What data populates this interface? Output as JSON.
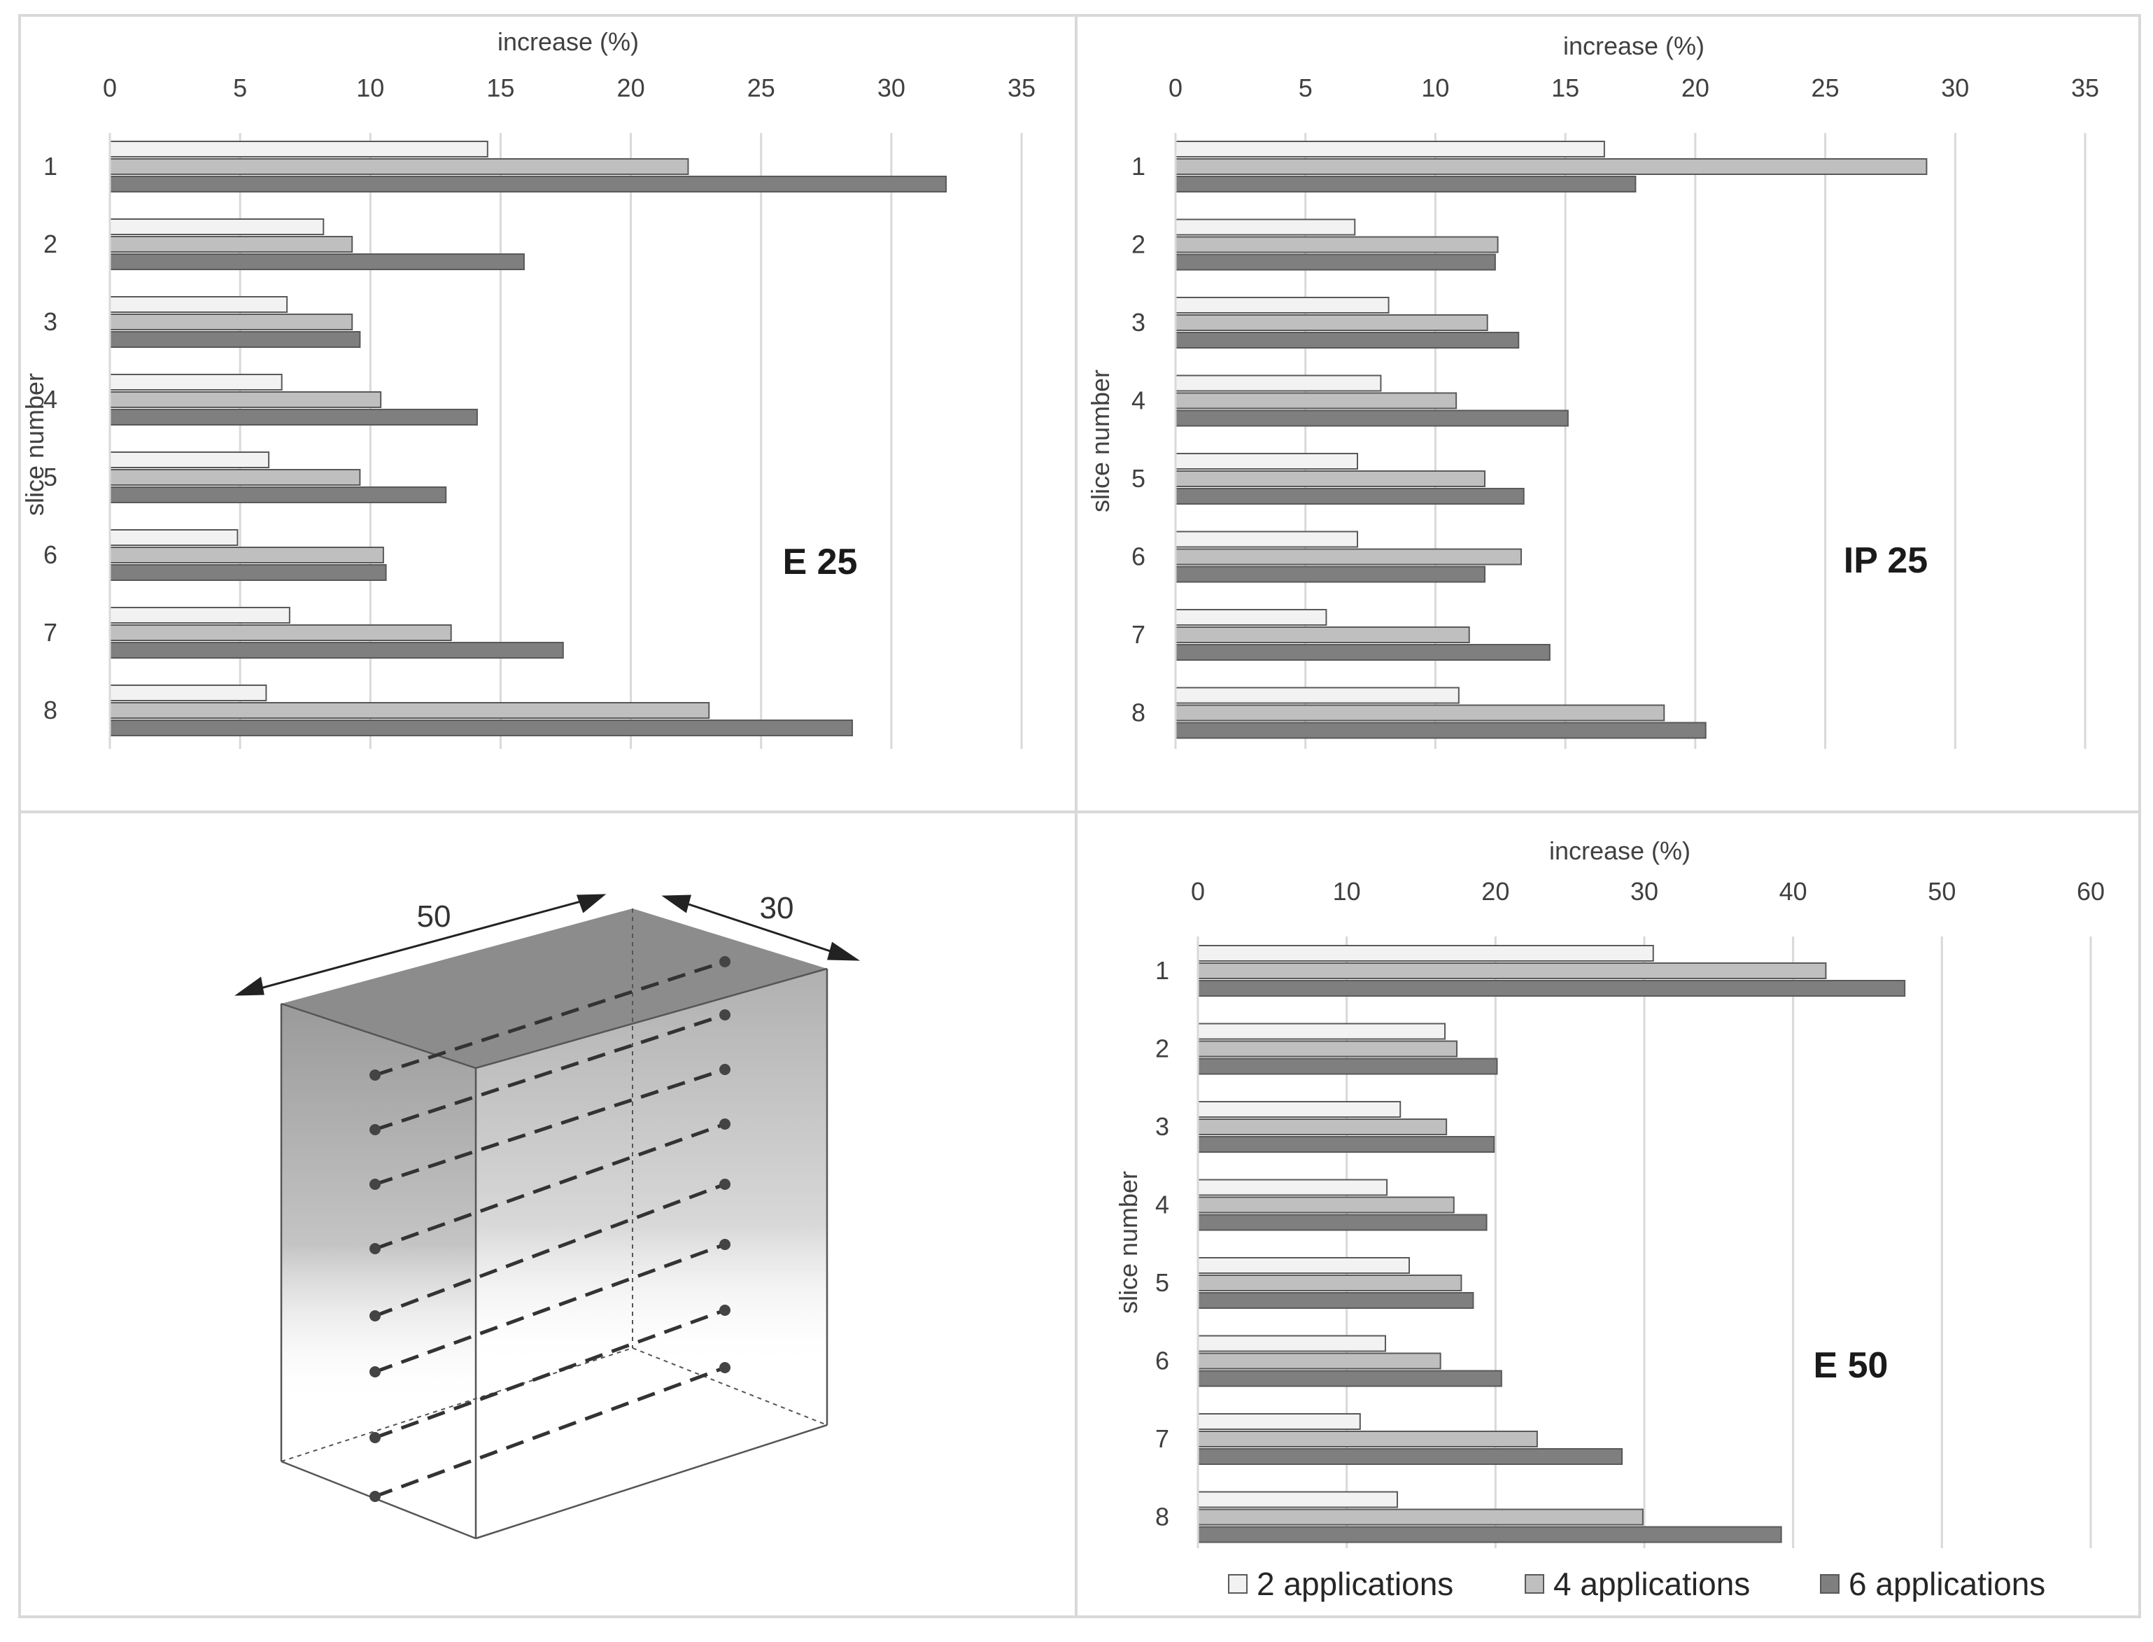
{
  "colors": {
    "series_2": "#f2f2f2",
    "series_4": "#bfbfbf",
    "series_6": "#7f7f7f",
    "bar_edge": "#595959",
    "grid": "#d9d9d9",
    "panel_border": "#d9d9d9"
  },
  "legend": {
    "items": [
      "2 applications",
      "4 applications",
      "6 applications"
    ]
  },
  "diagram": {
    "width_label": "50",
    "depth_label": "30"
  },
  "chart_data": [
    {
      "id": "E25",
      "type": "bar",
      "orientation": "horizontal",
      "title": "E 25",
      "xlabel": "increase  (%)",
      "ylabel": "slice number",
      "xlim": [
        0,
        35
      ],
      "xticks": [
        0,
        5,
        10,
        15,
        20,
        25,
        30,
        35
      ],
      "grid": true,
      "categories": [
        "1",
        "2",
        "3",
        "4",
        "5",
        "6",
        "7",
        "8"
      ],
      "series": [
        {
          "name": "2 applications",
          "values": [
            14.5,
            8.2,
            6.8,
            6.6,
            6.1,
            4.9,
            6.9,
            6.0
          ]
        },
        {
          "name": "4 applications",
          "values": [
            22.2,
            9.3,
            9.3,
            10.4,
            9.6,
            10.5,
            13.1,
            23.0
          ]
        },
        {
          "name": "6 applications",
          "values": [
            32.1,
            15.9,
            9.6,
            14.1,
            12.9,
            10.6,
            17.4,
            28.5
          ]
        }
      ]
    },
    {
      "id": "IP25",
      "type": "bar",
      "orientation": "horizontal",
      "title": "IP 25",
      "xlabel": "increase (%)",
      "ylabel": "slice number",
      "xlim": [
        0,
        35
      ],
      "xticks": [
        0,
        5,
        10,
        15,
        20,
        25,
        30,
        35
      ],
      "grid": true,
      "categories": [
        "1",
        "2",
        "3",
        "4",
        "5",
        "6",
        "7",
        "8"
      ],
      "series": [
        {
          "name": "2 applications",
          "values": [
            16.5,
            6.9,
            8.2,
            7.9,
            7.0,
            7.0,
            5.8,
            10.9
          ]
        },
        {
          "name": "4 applications",
          "values": [
            28.9,
            12.4,
            12.0,
            10.8,
            11.9,
            13.3,
            11.3,
            18.8
          ]
        },
        {
          "name": "6 applications",
          "values": [
            17.7,
            12.3,
            13.2,
            15.1,
            13.4,
            11.9,
            14.4,
            20.4
          ]
        }
      ]
    },
    {
      "id": "E50",
      "type": "bar",
      "orientation": "horizontal",
      "title": "E 50",
      "xlabel": "increase (%)",
      "ylabel": "slice number",
      "xlim": [
        0,
        60
      ],
      "xticks": [
        0,
        10,
        20,
        30,
        40,
        50,
        60
      ],
      "grid": true,
      "categories": [
        "1",
        "2",
        "3",
        "4",
        "5",
        "6",
        "7",
        "8"
      ],
      "series": [
        {
          "name": "2 applications",
          "values": [
            30.6,
            16.6,
            13.6,
            12.7,
            14.2,
            12.6,
            10.9,
            13.4
          ]
        },
        {
          "name": "4 applications",
          "values": [
            42.2,
            17.4,
            16.7,
            17.2,
            17.7,
            16.3,
            22.8,
            29.9
          ]
        },
        {
          "name": "6 applications",
          "values": [
            47.5,
            20.1,
            19.9,
            19.4,
            18.5,
            20.4,
            28.5,
            39.2
          ]
        }
      ]
    }
  ]
}
